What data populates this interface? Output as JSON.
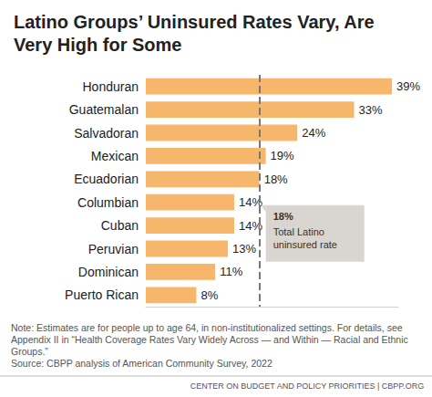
{
  "chart_data": {
    "type": "bar",
    "orientation": "horizontal",
    "title": "Latino Groups’ Uninsured Rates Vary, Are\nVery High for Some",
    "categories": [
      "Honduran",
      "Guatemalan",
      "Salvadoran",
      "Mexican",
      "Ecuadorian",
      "Columbian",
      "Cuban",
      "Peruvian",
      "Dominican",
      "Puerto Rican"
    ],
    "values": [
      39,
      33,
      24,
      19,
      18,
      14,
      14,
      13,
      11,
      8
    ],
    "value_labels": [
      "39%",
      "33%",
      "24%",
      "19%",
      "18%",
      "14%",
      "14%",
      "13%",
      "11%",
      "8%"
    ],
    "data_labels": true,
    "color": "#f6b76c",
    "xlim": [
      0,
      40
    ],
    "tick_labels": false,
    "grid": false,
    "reference_line": {
      "value": 18,
      "value_label": "18%",
      "text": "Total Latino uninsured rate"
    },
    "note": "Note: Estimates are for people up to age 64, in non-institutionalized settings. For details, see Appendix II in “Health Coverage Rates Vary Widely Across — and Within — Racial and Ethnic Groups.”",
    "source": "Source: CBPP analysis of American Community Survey, 2022",
    "footer": "CENTER ON BUDGET AND POLICY PRIORITIES | CBPP.ORG"
  }
}
